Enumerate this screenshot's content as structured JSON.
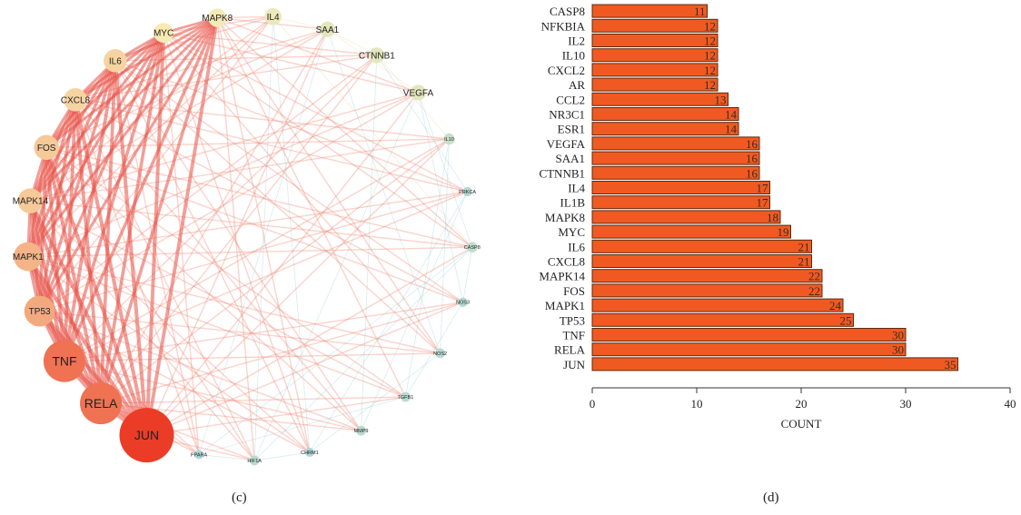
{
  "captions": {
    "left": "(c)",
    "right": "(d)"
  },
  "network": {
    "nodes": [
      {
        "label": "IL4",
        "degree": 17
      },
      {
        "label": "SAA1",
        "degree": 16
      },
      {
        "label": "CTNNB1",
        "degree": 16
      },
      {
        "label": "VEGFA",
        "degree": 16
      },
      {
        "label": "IL10",
        "degree": 12
      },
      {
        "label": "PRKCA",
        "degree": 9
      },
      {
        "label": "CASP8",
        "degree": 11
      },
      {
        "label": "NOS3",
        "degree": 9
      },
      {
        "label": "NOS2",
        "degree": 10
      },
      {
        "label": "TGFB1",
        "degree": 10
      },
      {
        "label": "MMP9",
        "degree": 10
      },
      {
        "label": "CHRM1",
        "degree": 8
      },
      {
        "label": "HIF1A",
        "degree": 10
      },
      {
        "label": "PPARA",
        "degree": 8
      },
      {
        "label": "JUN",
        "degree": 35
      },
      {
        "label": "RELA",
        "degree": 30
      },
      {
        "label": "TNF",
        "degree": 30
      },
      {
        "label": "TP53",
        "degree": 25
      },
      {
        "label": "MAPK1",
        "degree": 24
      },
      {
        "label": "MAPK14",
        "degree": 22
      },
      {
        "label": "FOS",
        "degree": 22
      },
      {
        "label": "CXCL8",
        "degree": 21
      },
      {
        "label": "IL6",
        "degree": 21
      },
      {
        "label": "MYC",
        "degree": 19
      },
      {
        "label": "MAPK8",
        "degree": 18
      }
    ]
  },
  "chart_data": {
    "type": "bar",
    "orientation": "horizontal",
    "categories": [
      "CASP8",
      "NFKBIA",
      "IL2",
      "IL10",
      "CXCL2",
      "AR",
      "CCL2",
      "NR3C1",
      "ESR1",
      "VEGFA",
      "SAA1",
      "CTNNB1",
      "IL4",
      "IL1B",
      "MAPK8",
      "MYC",
      "IL6",
      "CXCL8",
      "MAPK14",
      "FOS",
      "MAPK1",
      "TP53",
      "TNF",
      "RELA",
      "JUN"
    ],
    "values": [
      11,
      12,
      12,
      12,
      12,
      12,
      13,
      14,
      14,
      16,
      16,
      16,
      17,
      17,
      18,
      19,
      21,
      21,
      22,
      22,
      24,
      25,
      30,
      30,
      35
    ],
    "xlabel": "COUNT",
    "ylabel": "",
    "xlim": [
      0,
      40
    ],
    "xticks": [
      "0",
      "10",
      "20",
      "30",
      "40"
    ],
    "bar_color": "#f05a22",
    "bar_edge": "#5a2a10",
    "grid": false
  }
}
